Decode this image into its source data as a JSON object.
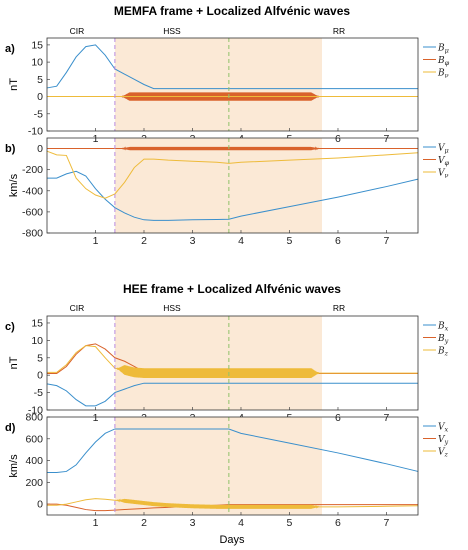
{
  "sections": [
    {
      "title": "MEMFA frame + Localized Alfvénic waves"
    },
    {
      "title": "HEE frame + Localized Alfvénic waves"
    }
  ],
  "regions": {
    "cir": "CIR",
    "hss": "HSS",
    "rr": "RR"
  },
  "colors": {
    "blue": "#3a8fcc",
    "orange": "#d9622b",
    "yellow": "#eebb3a",
    "shade": "#fbe9d6",
    "purple": "#b98be0",
    "green": "#8fc26a"
  },
  "xlabel": "Days",
  "chart_data": [
    {
      "type": "line",
      "panel": "a)",
      "ylabel": "nT",
      "xlim": [
        0,
        7.65
      ],
      "ylim": [
        -10,
        17
      ],
      "xticks": [
        1,
        2,
        3,
        4,
        5,
        6,
        7
      ],
      "yticks": [
        -10,
        -5,
        0,
        5,
        10,
        15
      ],
      "x": [
        0,
        0.2,
        0.4,
        0.6,
        0.8,
        1.0,
        1.2,
        1.4,
        1.6,
        1.8,
        2.0,
        2.2,
        3.0,
        4.0,
        5.0,
        6.0,
        7.0,
        7.65
      ],
      "series": [
        {
          "name": "B_μ",
          "color": "blue",
          "values": [
            2.5,
            3,
            7,
            11.5,
            14.5,
            15,
            12,
            8,
            6.5,
            5,
            3.5,
            2.3,
            2.3,
            2.3,
            2.3,
            2.3,
            2.3,
            2.3
          ]
        },
        {
          "name": "B_φ",
          "color": "orange",
          "values": [
            0,
            0,
            0,
            0,
            0,
            0,
            0,
            0,
            0,
            0,
            0,
            0,
            0,
            0,
            0,
            0,
            0,
            0
          ],
          "osc_range": [
            1.55,
            5.6
          ],
          "osc_amp": 1.2
        },
        {
          "name": "B_ν",
          "color": "yellow",
          "values": [
            0,
            0,
            0,
            0,
            0,
            0,
            0,
            0,
            0,
            0,
            0,
            0,
            0,
            0,
            0,
            0,
            0,
            0
          ]
        }
      ]
    },
    {
      "type": "line",
      "panel": "b)",
      "ylabel": "km/s",
      "xlim": [
        0,
        7.65
      ],
      "ylim": [
        -800,
        100
      ],
      "xticks": [
        1,
        2,
        3,
        4,
        5,
        6,
        7
      ],
      "yticks": [
        -800,
        -600,
        -400,
        -200,
        0
      ],
      "x": [
        0,
        0.2,
        0.4,
        0.6,
        0.8,
        1.0,
        1.2,
        1.4,
        1.6,
        1.8,
        2.0,
        2.2,
        2.5,
        3.0,
        3.5,
        3.75,
        4.0,
        5.0,
        6.0,
        7.0,
        7.65
      ],
      "series": [
        {
          "name": "V_μ",
          "color": "blue",
          "values": [
            -280,
            -280,
            -240,
            -215,
            -260,
            -380,
            -480,
            -560,
            -610,
            -650,
            -675,
            -680,
            -680,
            -675,
            -672,
            -670,
            -640,
            -550,
            -460,
            -360,
            -290
          ]
        },
        {
          "name": "V_φ",
          "color": "orange",
          "values": [
            0,
            0,
            0,
            0,
            0,
            0,
            0,
            0,
            0,
            0,
            0,
            0,
            0,
            0,
            0,
            0,
            0,
            0,
            0,
            0,
            0
          ],
          "osc_range": [
            1.55,
            5.6
          ],
          "osc_amp": 15
        },
        {
          "name": "V_ν",
          "color": "yellow",
          "values": [
            -25,
            -60,
            -65,
            -280,
            -380,
            -440,
            -470,
            -430,
            -320,
            -180,
            -100,
            -100,
            -110,
            -120,
            -130,
            -140,
            -130,
            -110,
            -90,
            -60,
            -40
          ]
        }
      ]
    },
    {
      "type": "line",
      "panel": "c)",
      "ylabel": "nT",
      "xlim": [
        0,
        7.65
      ],
      "ylim": [
        -10,
        17
      ],
      "xticks": [
        1,
        2,
        3,
        4,
        5,
        6,
        7
      ],
      "yticks": [
        -10,
        -5,
        0,
        5,
        10,
        15
      ],
      "x": [
        0,
        0.2,
        0.4,
        0.6,
        0.8,
        1.0,
        1.2,
        1.4,
        1.6,
        1.8,
        2.0,
        2.2,
        3.0,
        4.0,
        5.0,
        6.0,
        7.0,
        7.65
      ],
      "series": [
        {
          "name": "B_x",
          "color": "blue",
          "values": [
            -2.5,
            -3,
            -4.5,
            -7,
            -8.8,
            -8.8,
            -7.5,
            -5,
            -4,
            -3,
            -2.3,
            -2.3,
            -2.3,
            -2.3,
            -2.3,
            -2.3,
            -2.3,
            -2.3
          ]
        },
        {
          "name": "B_y",
          "color": "orange",
          "values": [
            0.5,
            0.5,
            2.5,
            6,
            8.5,
            9,
            7.5,
            5,
            4,
            2.5,
            1,
            0.5,
            0.5,
            0.5,
            0.5,
            0.5,
            0.5,
            0.5
          ]
        },
        {
          "name": "B_z",
          "color": "yellow",
          "values": [
            0.8,
            0.8,
            3,
            6.5,
            8.5,
            8.2,
            5,
            2,
            1.5,
            0.8,
            0.6,
            0.6,
            0.6,
            0.6,
            0.6,
            0.6,
            0.6,
            0.6
          ],
          "osc_range": [
            1.45,
            5.6
          ],
          "osc_amp": 1.4
        }
      ]
    },
    {
      "type": "line",
      "panel": "d)",
      "ylabel": "km/s",
      "xlim": [
        0,
        7.65
      ],
      "ylim": [
        -100,
        800
      ],
      "xticks": [
        1,
        2,
        3,
        4,
        5,
        6,
        7
      ],
      "yticks": [
        0,
        200,
        400,
        600,
        800
      ],
      "x": [
        0,
        0.2,
        0.4,
        0.6,
        0.8,
        1.0,
        1.2,
        1.4,
        1.6,
        1.8,
        2.0,
        2.2,
        2.5,
        3.0,
        3.5,
        3.75,
        4.0,
        5.0,
        6.0,
        7.0,
        7.65
      ],
      "series": [
        {
          "name": "V_x",
          "color": "blue",
          "values": [
            290,
            290,
            300,
            360,
            470,
            570,
            650,
            690,
            690,
            690,
            690,
            690,
            690,
            690,
            690,
            690,
            650,
            560,
            470,
            370,
            300
          ]
        },
        {
          "name": "V_y",
          "color": "orange",
          "values": [
            0,
            0,
            -10,
            -30,
            -50,
            -60,
            -60,
            -55,
            -50,
            -45,
            -40,
            -35,
            -30,
            -20,
            -10,
            -5,
            -5,
            -5,
            -5,
            -5,
            -5
          ]
        },
        {
          "name": "V_z",
          "color": "yellow",
          "values": [
            -10,
            -10,
            0,
            20,
            40,
            50,
            45,
            35,
            30,
            20,
            10,
            0,
            -10,
            -20,
            -25,
            -25,
            -25,
            -25,
            -25,
            -20,
            -15
          ],
          "osc_range": [
            1.45,
            5.6
          ],
          "osc_amp": 18
        }
      ]
    }
  ],
  "markers": {
    "shade_range": [
      1.4,
      5.67
    ],
    "purple_line": 1.4,
    "green_line": 3.75
  }
}
